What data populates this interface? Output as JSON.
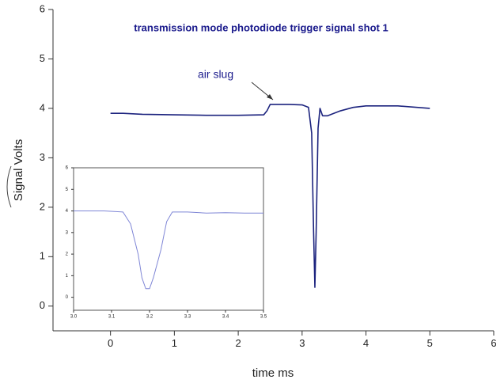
{
  "chart_data": [
    {
      "type": "line",
      "title": "transmission mode photodiode trigger signal shot 1",
      "xlabel": "time ms",
      "ylabel": "Signal Volts",
      "annotation": "air slug",
      "color": "#1c237e",
      "x": [
        0,
        0.2,
        0.5,
        1,
        1.5,
        2,
        2.4,
        2.45,
        2.5,
        2.8,
        3.0,
        3.1,
        3.15,
        3.18,
        3.2,
        3.22,
        3.25,
        3.28,
        3.32,
        3.4,
        3.6,
        3.8,
        4.0,
        4.5,
        5
      ],
      "values": [
        3.9,
        3.9,
        3.88,
        3.87,
        3.86,
        3.86,
        3.87,
        3.95,
        4.08,
        4.08,
        4.07,
        4.02,
        3.5,
        1.5,
        0.38,
        1.5,
        3.6,
        4.0,
        3.85,
        3.85,
        3.95,
        4.02,
        4.05,
        4.05,
        4.0
      ],
      "xlim": [
        -0.9,
        6
      ],
      "ylim": [
        -0.5,
        6
      ],
      "xticks": [
        0,
        1,
        2,
        3,
        4,
        5,
        6
      ],
      "yticks": [
        0,
        1,
        2,
        3,
        4,
        5,
        6
      ],
      "grid": false
    },
    {
      "type": "line",
      "color": "#7f86d6",
      "x": [
        3.0,
        3.08,
        3.13,
        3.15,
        3.17,
        3.18,
        3.19,
        3.2,
        3.21,
        3.23,
        3.245,
        3.26,
        3.3,
        3.35,
        3.4,
        3.45,
        3.5
      ],
      "values": [
        4.0,
        4.0,
        3.95,
        3.4,
        2.0,
        0.9,
        0.4,
        0.4,
        0.9,
        2.2,
        3.5,
        3.95,
        3.95,
        3.9,
        3.92,
        3.9,
        3.9
      ],
      "xlim": [
        3.0,
        3.5
      ],
      "ylim": [
        -0.6,
        6
      ],
      "xticks": [
        {
          "value": 3,
          "label": "3.0"
        },
        3.1,
        3.2,
        3.3,
        3.4,
        {
          "value": 3.5,
          "label": "3.5"
        }
      ],
      "yticks": [
        0,
        1,
        2,
        3,
        4,
        5,
        6
      ],
      "grid": false
    }
  ]
}
